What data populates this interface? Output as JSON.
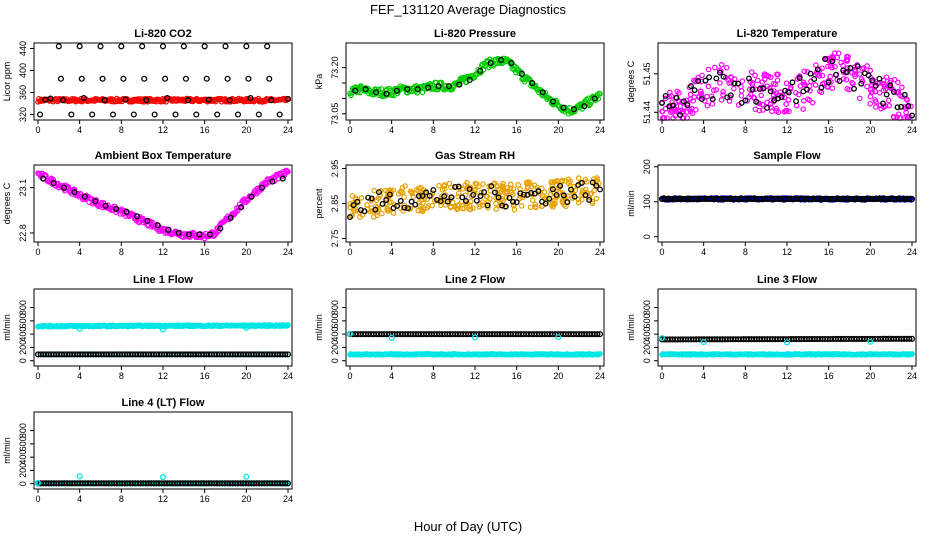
{
  "figure": {
    "title": "FEF_131120  Average Diagnostics",
    "xlabel": "Hour of Day (UTC)"
  },
  "chart_data": [
    {
      "type": "scatter",
      "title": "Li-820 CO2",
      "ylabel": "Licor ppm",
      "xlim": [
        0,
        24
      ],
      "xticks": [
        0,
        4,
        8,
        12,
        16,
        20,
        24
      ],
      "ylim": [
        310,
        450
      ],
      "yticks": [
        320,
        360,
        400,
        440
      ],
      "series": [
        {
          "name": "fast",
          "color": "#ff0000",
          "style": "dense",
          "x": [
            0,
            24
          ],
          "y": [
            346,
            346
          ],
          "spread": 3
        },
        {
          "name": "avg",
          "color": "#000000",
          "style": "pts",
          "x": [
            0.2,
            0.7,
            1.2,
            2.0,
            2.2,
            2.4,
            3.2,
            4.0,
            4.2,
            4.4,
            5.2,
            6.0,
            6.2,
            6.4,
            7.2,
            8.0,
            8.2,
            8.4,
            9.2,
            10.0,
            10.2,
            10.4,
            11.2,
            12.0,
            12.2,
            12.4,
            13.2,
            14.0,
            14.2,
            14.4,
            15.2,
            16.0,
            16.2,
            16.4,
            17.2,
            18.0,
            18.2,
            18.4,
            19.2,
            20.0,
            20.2,
            20.4,
            21.2,
            22.0,
            22.2,
            22.4,
            23.2,
            24.0
          ],
          "y": [
            320,
            347,
            349,
            444,
            385,
            346,
            320,
            444,
            385,
            350,
            320,
            444,
            385,
            346,
            320,
            444,
            385,
            347,
            320,
            444,
            385,
            346,
            320,
            444,
            385,
            350,
            320,
            444,
            385,
            346,
            320,
            444,
            385,
            347,
            320,
            444,
            385,
            346,
            320,
            444,
            385,
            350,
            320,
            444,
            385,
            346,
            320,
            348
          ]
        }
      ]
    },
    {
      "type": "scatter",
      "title": "Li-820 Pressure",
      "ylabel": "kPa",
      "xlim": [
        0,
        24
      ],
      "xticks": [
        0,
        4,
        8,
        12,
        16,
        20,
        24
      ],
      "ylim": [
        73.03,
        73.28
      ],
      "yticks": [
        73.05,
        73.1,
        73.15,
        73.2
      ],
      "yticklabels": [
        "73.05",
        "",
        "",
        "73.20"
      ],
      "series": [
        {
          "name": "fast",
          "color": "#00cc00",
          "style": "dense",
          "x": [
            0,
            1,
            2,
            3,
            4,
            5,
            6,
            7,
            8,
            9,
            10,
            11,
            12,
            13,
            14,
            15,
            16,
            17,
            18,
            19,
            20,
            21,
            22,
            23,
            24
          ],
          "y": [
            73.12,
            73.13,
            73.12,
            73.12,
            73.12,
            73.13,
            73.13,
            73.13,
            73.14,
            73.14,
            73.14,
            73.16,
            73.18,
            73.21,
            73.22,
            73.22,
            73.19,
            73.16,
            73.13,
            73.1,
            73.08,
            73.06,
            73.07,
            73.09,
            73.11
          ],
          "spread": 0.013
        },
        {
          "name": "avg",
          "color": "#000000",
          "style": "pts",
          "x": [
            0.5,
            1.5,
            2.5,
            3.5,
            4.5,
            5.5,
            6.5,
            7.5,
            8.5,
            9.5,
            10.5,
            11.5,
            12.5,
            13.5,
            14.5,
            15.5,
            16.5,
            17.5,
            18.5,
            19.5,
            20.5,
            21.5,
            22.5,
            23.5
          ],
          "y": [
            73.125,
            73.13,
            73.12,
            73.115,
            73.125,
            73.13,
            73.13,
            73.135,
            73.14,
            73.14,
            73.145,
            73.16,
            73.19,
            73.215,
            73.225,
            73.215,
            73.18,
            73.15,
            73.12,
            73.09,
            73.07,
            73.065,
            73.075,
            73.1
          ]
        }
      ]
    },
    {
      "type": "scatter",
      "title": "Li-820 Temperature",
      "ylabel": "degrees C",
      "xlim": [
        0,
        24
      ],
      "xticks": [
        0,
        4,
        8,
        12,
        16,
        20,
        24
      ],
      "ylim": [
        51.438,
        51.458
      ],
      "yticks": [
        51.44,
        51.45
      ],
      "series": [
        {
          "name": "fast",
          "color": "#ff00ff",
          "style": "noisy",
          "x": [
            0,
            2,
            4,
            6,
            8,
            10,
            12,
            14,
            16,
            18,
            20,
            22,
            24
          ],
          "y": [
            51.44,
            51.442,
            51.446,
            51.448,
            51.446,
            51.445,
            51.445,
            51.446,
            51.451,
            51.45,
            51.447,
            51.444,
            51.441
          ],
          "spread": 0.005
        },
        {
          "name": "avg",
          "color": "#000000",
          "style": "noisy-pts",
          "x": [
            0,
            2,
            4,
            6,
            8,
            10,
            12,
            14,
            16,
            18,
            20,
            22,
            24
          ],
          "y": [
            51.44,
            51.442,
            51.446,
            51.448,
            51.446,
            51.445,
            51.445,
            51.446,
            51.451,
            51.45,
            51.447,
            51.444,
            51.441
          ],
          "spread": 0.004
        }
      ]
    },
    {
      "type": "scatter",
      "title": "Ambient Box Temperature",
      "ylabel": "degrees C",
      "xlim": [
        0,
        24
      ],
      "xticks": [
        0,
        4,
        8,
        12,
        16,
        20,
        24
      ],
      "ylim": [
        22.74,
        23.25
      ],
      "yticks": [
        22.8,
        23.1
      ],
      "series": [
        {
          "name": "fast",
          "color": "#ff00ff",
          "style": "dense",
          "x": [
            0,
            2,
            4,
            6,
            8,
            10,
            12,
            14,
            16,
            17,
            18,
            20,
            22,
            24
          ],
          "y": [
            23.19,
            23.12,
            23.05,
            22.99,
            22.94,
            22.88,
            22.82,
            22.79,
            22.78,
            22.8,
            22.88,
            23.02,
            23.14,
            23.2
          ],
          "spread": 0.02
        },
        {
          "name": "avg",
          "color": "#000000",
          "style": "pts",
          "x": [
            0.5,
            1.5,
            2.5,
            3.5,
            4.5,
            5.5,
            6.5,
            7.5,
            8.5,
            9.5,
            10.5,
            11.5,
            12.5,
            13.5,
            14.5,
            15.5,
            16.5,
            17.5,
            18.5,
            19.5,
            20.5,
            21.5,
            22.5,
            23.5
          ],
          "y": [
            23.16,
            23.13,
            23.1,
            23.07,
            23.04,
            23.01,
            22.98,
            22.96,
            22.94,
            22.91,
            22.88,
            22.85,
            22.82,
            22.8,
            22.79,
            22.79,
            22.79,
            22.83,
            22.9,
            22.97,
            23.04,
            23.1,
            23.14,
            23.16
          ]
        }
      ]
    },
    {
      "type": "scatter",
      "title": "Gas Stream RH",
      "ylabel": "percent",
      "xlim": [
        0,
        24
      ],
      "xticks": [
        0,
        4,
        8,
        12,
        16,
        20,
        24
      ],
      "ylim": [
        2.74,
        2.96
      ],
      "yticks": [
        2.75,
        2.85,
        2.95
      ],
      "series": [
        {
          "name": "fast",
          "color": "#e8a000",
          "style": "noisy",
          "x": [
            0,
            4,
            8,
            12,
            16,
            20,
            24
          ],
          "y": [
            2.84,
            2.86,
            2.87,
            2.87,
            2.87,
            2.88,
            2.89
          ],
          "spread": 0.04
        },
        {
          "name": "avg",
          "color": "#000000",
          "style": "noisy-pts",
          "x": [
            0,
            4,
            8,
            12,
            16,
            20,
            24
          ],
          "y": [
            2.84,
            2.86,
            2.87,
            2.87,
            2.87,
            2.88,
            2.89
          ],
          "spread": 0.03
        }
      ]
    },
    {
      "type": "scatter",
      "title": "Sample Flow",
      "ylabel": "ml/min",
      "xlim": [
        0,
        24
      ],
      "xticks": [
        0,
        4,
        8,
        12,
        16,
        20,
        24
      ],
      "ylim": [
        -15,
        205
      ],
      "yticks": [
        0,
        100,
        200
      ],
      "series": [
        {
          "name": "fast",
          "color": "#0000cc",
          "style": "dense",
          "x": [
            0,
            24
          ],
          "y": [
            108,
            108
          ],
          "spread": 3
        },
        {
          "name": "avg",
          "color": "#000000",
          "style": "line-pts",
          "x": [
            0,
            24
          ],
          "y": [
            108,
            108
          ]
        }
      ]
    },
    {
      "type": "scatter",
      "title": "Line 1 Flow",
      "ylabel": "ml/min",
      "xlim": [
        0,
        24
      ],
      "xticks": [
        0,
        4,
        8,
        12,
        16,
        20,
        24
      ],
      "ylim": [
        -80,
        1080
      ],
      "yticks": [
        0,
        200,
        400,
        600,
        800
      ],
      "series": [
        {
          "name": "fast",
          "color": "#00e5e5",
          "style": "dense",
          "x": [
            0,
            24
          ],
          "y": [
            520,
            530
          ],
          "spread": 10
        },
        {
          "name": "low",
          "color": "#00e5e5",
          "style": "line-pts",
          "x": [
            0,
            24
          ],
          "y": [
            95,
            95
          ]
        },
        {
          "name": "avg",
          "color": "#000000",
          "style": "line-pts",
          "x": [
            0,
            24
          ],
          "y": [
            95,
            95
          ]
        },
        {
          "name": "dips",
          "color": "#00e5e5",
          "style": "pts",
          "x": [
            4,
            12,
            20
          ],
          "y": [
            480,
            470,
            495
          ]
        }
      ]
    },
    {
      "type": "scatter",
      "title": "Line 2 Flow",
      "ylabel": "ml/min",
      "xlim": [
        0,
        24
      ],
      "xticks": [
        0,
        4,
        8,
        12,
        16,
        20,
        24
      ],
      "ylim": [
        -80,
        1080
      ],
      "yticks": [
        0,
        200,
        400,
        600,
        800
      ],
      "series": [
        {
          "name": "fast",
          "color": "#00e5e5",
          "style": "dense",
          "x": [
            0,
            24
          ],
          "y": [
            95,
            95
          ],
          "spread": 8
        },
        {
          "name": "avg",
          "color": "#000000",
          "style": "line-pts",
          "x": [
            0,
            24
          ],
          "y": [
            400,
            400
          ]
        },
        {
          "name": "dips",
          "color": "#00e5e5",
          "style": "pts",
          "x": [
            0,
            4,
            12,
            20
          ],
          "y": [
            405,
            345,
            350,
            355
          ]
        }
      ]
    },
    {
      "type": "scatter",
      "title": "Line 3 Flow",
      "ylabel": "ml/min",
      "xlim": [
        0,
        24
      ],
      "xticks": [
        0,
        4,
        8,
        12,
        16,
        20,
        24
      ],
      "ylim": [
        -80,
        1080
      ],
      "yticks": [
        0,
        200,
        400,
        600,
        800
      ],
      "series": [
        {
          "name": "fast",
          "color": "#00e5e5",
          "style": "dense",
          "x": [
            0,
            24
          ],
          "y": [
            95,
            95
          ],
          "spread": 8
        },
        {
          "name": "avg",
          "color": "#000000",
          "style": "line-pts",
          "x": [
            0,
            24
          ],
          "y": [
            320,
            330
          ]
        },
        {
          "name": "dips",
          "color": "#00e5e5",
          "style": "pts",
          "x": [
            0,
            4,
            12,
            20
          ],
          "y": [
            340,
            280,
            275,
            285
          ]
        }
      ]
    },
    {
      "type": "scatter",
      "title": "Line 4 (LT) Flow",
      "ylabel": "ml/min",
      "xlim": [
        0,
        24
      ],
      "xticks": [
        0,
        4,
        8,
        12,
        16,
        20,
        24
      ],
      "ylim": [
        -80,
        1080
      ],
      "yticks": [
        0,
        200,
        400,
        600,
        800
      ],
      "series": [
        {
          "name": "fast",
          "color": "#00e5e5",
          "style": "dense",
          "x": [
            0,
            24
          ],
          "y": [
            5,
            5
          ],
          "spread": 5
        },
        {
          "name": "avg",
          "color": "#000000",
          "style": "line-pts",
          "x": [
            0,
            24
          ],
          "y": [
            5,
            5
          ]
        },
        {
          "name": "spikes",
          "color": "#00e5e5",
          "style": "pts",
          "x": [
            0,
            4,
            12,
            20
          ],
          "y": [
            10,
            110,
            100,
            105
          ]
        }
      ]
    }
  ]
}
